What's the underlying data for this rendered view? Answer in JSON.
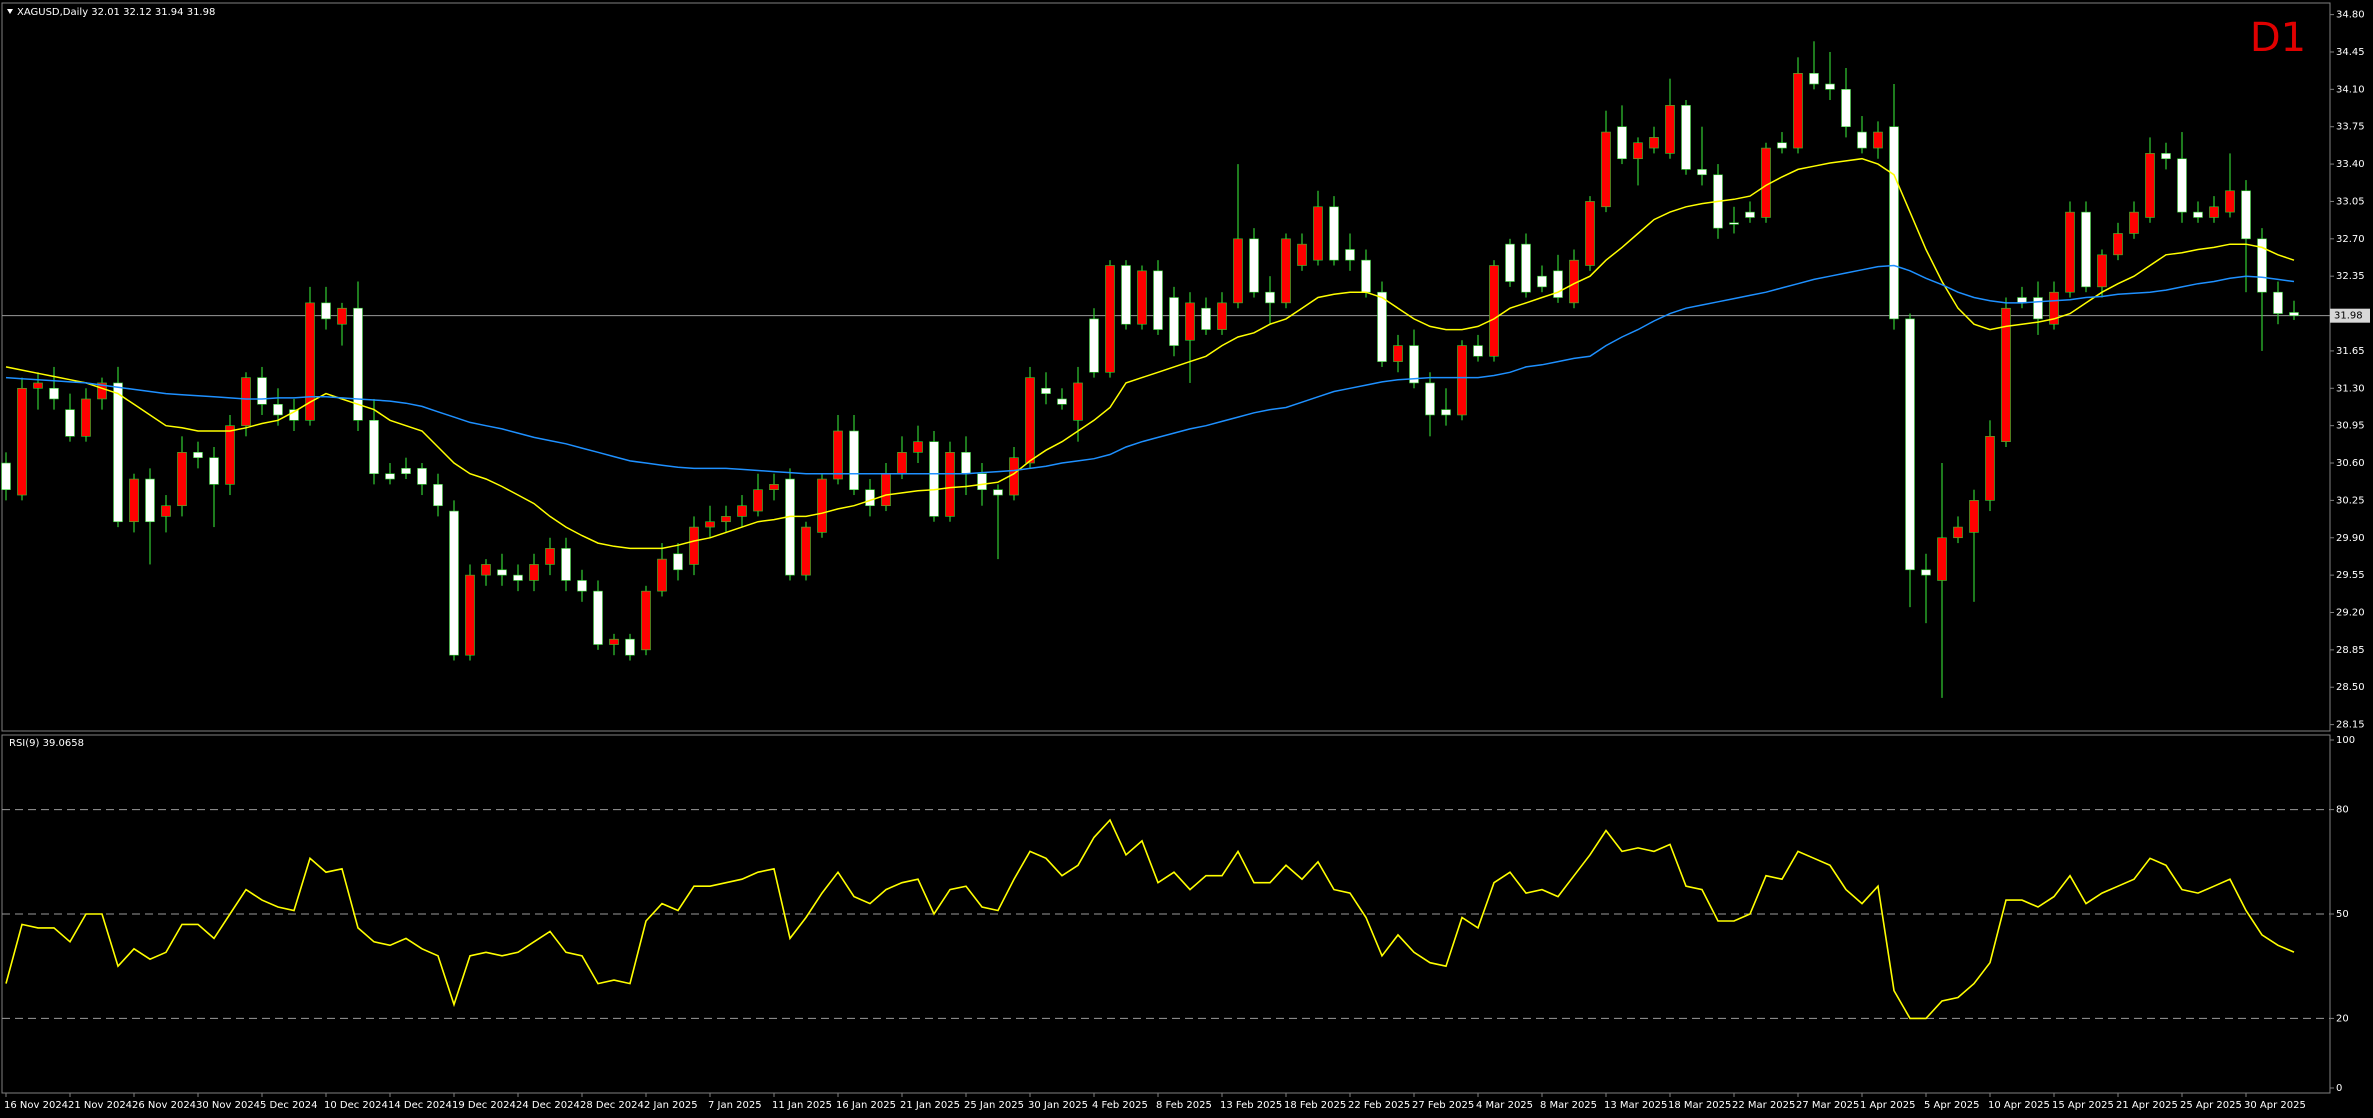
{
  "chart_data": [
    {
      "type": "candlestick",
      "title": "XAGUSD,Daily 32.01 32.12 31.94 31.98",
      "timeframe": "D1",
      "categories": [
        "16 Nov 2024",
        null,
        null,
        null,
        "21 Nov 2024",
        null,
        null,
        null,
        "26 Nov 2024",
        null,
        null,
        null,
        "30 Nov 2024",
        null,
        null,
        null,
        "5 Dec 2024",
        null,
        null,
        null,
        "10 Dec 2024",
        null,
        null,
        null,
        "14 Dec 2024",
        null,
        null,
        null,
        "19 Dec 2024",
        null,
        null,
        null,
        "24 Dec 2024",
        null,
        null,
        null,
        "28 Dec 2024",
        null,
        null,
        null,
        "2 Jan 2025",
        null,
        null,
        null,
        "7 Jan 2025",
        null,
        null,
        null,
        "11 Jan 2025",
        null,
        null,
        null,
        "16 Jan 2025",
        null,
        null,
        null,
        "21 Jan 2025",
        null,
        null,
        null,
        "25 Jan 2025",
        null,
        null,
        null,
        "30 Jan 2025",
        null,
        null,
        null,
        "4 Feb 2025",
        null,
        null,
        null,
        "8 Feb 2025",
        null,
        null,
        null,
        "13 Feb 2025",
        null,
        null,
        null,
        "18 Feb 2025",
        null,
        null,
        null,
        "22 Feb 2025",
        null,
        null,
        null,
        "27 Feb 2025",
        null,
        null,
        null,
        "4 Mar 2025",
        null,
        null,
        null,
        "8 Mar 2025",
        null,
        null,
        null,
        "13 Mar 2025",
        null,
        null,
        null,
        "18 Mar 2025",
        null,
        null,
        null,
        "22 Mar 2025",
        null,
        null,
        null,
        "27 Mar 2025",
        null,
        null,
        null,
        "1 Apr 2025",
        null,
        null,
        null,
        "5 Apr 2025",
        null,
        null,
        null,
        "10 Apr 2025",
        null,
        null,
        null,
        "15 Apr 2025",
        null,
        null,
        null,
        "21 Apr 2025",
        null,
        null,
        null,
        "25 Apr 2025",
        null,
        null,
        null,
        "30 Apr 2025",
        null,
        null,
        null
      ],
      "open": [
        30.6,
        30.3,
        31.3,
        31.3,
        31.1,
        30.85,
        31.2,
        31.35,
        30.05,
        30.45,
        30.1,
        30.2,
        30.7,
        30.65,
        30.4,
        30.95,
        31.4,
        31.15,
        31.1,
        31.0,
        32.1,
        31.9,
        32.05,
        31.0,
        30.5,
        30.55,
        30.55,
        30.4,
        30.15,
        28.8,
        29.55,
        29.6,
        29.55,
        29.5,
        29.65,
        29.8,
        29.5,
        29.4,
        28.9,
        28.95,
        28.85,
        29.4,
        29.75,
        29.65,
        30.0,
        30.05,
        30.1,
        30.15,
        30.35,
        30.45,
        29.55,
        29.95,
        30.45,
        30.9,
        30.35,
        30.2,
        30.5,
        30.7,
        30.8,
        30.1,
        30.7,
        30.5,
        30.35,
        30.3,
        30.6,
        31.3,
        31.2,
        31.0,
        31.95,
        31.45,
        32.45,
        31.9,
        32.4,
        32.15,
        31.75,
        32.05,
        31.85,
        32.1,
        32.7,
        32.2,
        32.1,
        32.45,
        32.5,
        33.0,
        32.6,
        32.5,
        32.2,
        31.55,
        31.7,
        31.35,
        31.1,
        31.05,
        31.7,
        31.6,
        32.65,
        32.65,
        32.35,
        32.4,
        32.1,
        32.45,
        33.0,
        33.75,
        33.45,
        33.55,
        33.5,
        33.95,
        33.35,
        33.3,
        32.85,
        32.95,
        32.9,
        33.6,
        33.55,
        34.25,
        34.15,
        34.1,
        33.7,
        33.55,
        33.75,
        31.95,
        29.6,
        29.5,
        29.9,
        29.95,
        30.25,
        30.8,
        32.15,
        32.15,
        31.9,
        32.2,
        32.95,
        32.25,
        32.55,
        32.75,
        32.9,
        33.5,
        33.45,
        32.95,
        32.9,
        32.95,
        33.15,
        32.7,
        32.2,
        32.01
      ],
      "high": [
        30.7,
        31.4,
        31.45,
        31.5,
        31.25,
        31.3,
        31.4,
        31.5,
        30.5,
        30.55,
        30.3,
        30.85,
        30.8,
        30.75,
        31.05,
        31.45,
        31.5,
        31.3,
        31.2,
        32.25,
        32.25,
        32.1,
        32.3,
        31.2,
        30.6,
        30.65,
        30.6,
        30.5,
        30.25,
        29.65,
        29.7,
        29.75,
        29.65,
        29.75,
        29.9,
        29.9,
        29.6,
        29.5,
        29.0,
        29.0,
        29.45,
        29.85,
        29.85,
        30.1,
        30.2,
        30.2,
        30.3,
        30.5,
        30.5,
        30.55,
        30.05,
        30.5,
        31.05,
        31.05,
        30.45,
        30.6,
        30.85,
        30.95,
        30.9,
        30.8,
        30.85,
        30.6,
        30.4,
        30.75,
        31.5,
        31.45,
        31.3,
        31.5,
        32.05,
        32.5,
        32.5,
        32.45,
        32.5,
        32.25,
        32.2,
        32.15,
        32.2,
        33.4,
        32.8,
        32.35,
        32.75,
        32.75,
        33.15,
        33.1,
        32.75,
        32.6,
        32.3,
        31.8,
        31.85,
        31.45,
        31.3,
        31.75,
        31.8,
        32.5,
        32.7,
        32.75,
        32.45,
        32.55,
        32.6,
        33.1,
        33.9,
        33.95,
        33.65,
        33.75,
        34.2,
        34.0,
        33.75,
        33.4,
        33.0,
        33.05,
        33.6,
        33.7,
        34.4,
        34.55,
        34.45,
        34.3,
        33.85,
        33.8,
        34.15,
        32.0,
        29.75,
        30.6,
        30.1,
        30.35,
        31.0,
        32.15,
        32.25,
        32.3,
        32.3,
        33.05,
        33.05,
        32.6,
        32.85,
        33.05,
        33.65,
        33.6,
        33.7,
        33.05,
        33.1,
        33.5,
        33.25,
        32.8,
        32.3,
        32.12
      ],
      "low": [
        30.25,
        30.25,
        31.1,
        31.1,
        30.8,
        30.8,
        31.1,
        30.0,
        29.95,
        29.65,
        29.95,
        30.1,
        30.55,
        30.0,
        30.3,
        30.85,
        31.05,
        30.95,
        30.9,
        30.95,
        31.85,
        31.7,
        30.9,
        30.4,
        30.4,
        30.45,
        30.3,
        30.1,
        28.75,
        28.75,
        29.45,
        29.45,
        29.4,
        29.4,
        29.55,
        29.4,
        29.3,
        28.85,
        28.8,
        28.75,
        28.8,
        29.35,
        29.5,
        29.55,
        29.9,
        29.95,
        30.0,
        30.1,
        30.25,
        29.5,
        29.5,
        29.9,
        30.4,
        30.3,
        30.1,
        30.15,
        30.45,
        30.6,
        30.05,
        30.05,
        30.3,
        30.2,
        29.7,
        30.25,
        30.55,
        31.15,
        31.1,
        30.8,
        31.4,
        31.4,
        31.85,
        31.85,
        31.8,
        31.6,
        31.35,
        31.8,
        31.8,
        32.05,
        32.15,
        31.9,
        32.05,
        32.4,
        32.45,
        32.45,
        32.4,
        32.15,
        31.5,
        31.45,
        31.3,
        30.85,
        30.95,
        31.0,
        31.55,
        31.55,
        32.25,
        32.15,
        32.2,
        32.1,
        32.05,
        32.4,
        32.95,
        33.4,
        33.2,
        33.5,
        33.45,
        33.3,
        33.2,
        32.7,
        32.75,
        32.85,
        32.85,
        33.5,
        33.5,
        34.1,
        34.0,
        33.65,
        33.5,
        33.45,
        31.85,
        29.25,
        29.1,
        28.4,
        29.85,
        29.3,
        30.15,
        30.75,
        32.05,
        31.8,
        31.85,
        32.15,
        32.2,
        32.15,
        32.5,
        32.7,
        32.85,
        33.35,
        32.85,
        32.85,
        32.85,
        32.9,
        32.2,
        31.65,
        31.9,
        31.94
      ],
      "close": [
        30.35,
        31.3,
        31.35,
        31.2,
        30.85,
        31.2,
        31.35,
        30.05,
        30.45,
        30.05,
        30.2,
        30.7,
        30.65,
        30.4,
        30.95,
        31.4,
        31.15,
        31.05,
        31.0,
        32.1,
        31.95,
        32.05,
        31.0,
        30.5,
        30.45,
        30.5,
        30.4,
        30.2,
        28.8,
        29.55,
        29.65,
        29.55,
        29.5,
        29.65,
        29.8,
        29.5,
        29.4,
        28.9,
        28.95,
        28.8,
        29.4,
        29.7,
        29.6,
        30.0,
        30.05,
        30.1,
        30.2,
        30.35,
        30.4,
        29.55,
        30.0,
        30.45,
        30.9,
        30.35,
        30.2,
        30.5,
        30.7,
        30.8,
        30.1,
        30.7,
        30.5,
        30.35,
        30.3,
        30.65,
        31.4,
        31.25,
        31.15,
        31.35,
        31.45,
        32.45,
        31.9,
        32.4,
        31.85,
        31.7,
        32.1,
        31.85,
        32.1,
        32.7,
        32.2,
        32.1,
        32.7,
        32.65,
        33.0,
        32.5,
        32.5,
        32.2,
        31.55,
        31.7,
        31.35,
        31.05,
        31.05,
        31.7,
        31.6,
        32.45,
        32.3,
        32.2,
        32.25,
        32.15,
        32.5,
        33.05,
        33.7,
        33.45,
        33.6,
        33.65,
        33.95,
        33.35,
        33.3,
        32.8,
        32.85,
        32.9,
        33.55,
        33.55,
        34.25,
        34.15,
        34.1,
        33.75,
        33.55,
        33.7,
        31.95,
        29.6,
        29.55,
        29.9,
        30.0,
        30.25,
        30.85,
        32.05,
        32.1,
        31.95,
        32.2,
        32.95,
        32.25,
        32.55,
        32.75,
        32.95,
        33.5,
        33.45,
        32.95,
        32.9,
        33.0,
        33.15,
        32.7,
        32.2,
        32.0,
        31.98
      ],
      "up_color": "#ff0000",
      "down_color": "#ffffff",
      "wick_color": "#32cd32",
      "overlays": [
        {
          "color": "#ffff00",
          "values": [
            31.5,
            31.47,
            31.44,
            31.41,
            31.38,
            31.35,
            31.3,
            31.25,
            31.15,
            31.05,
            30.95,
            30.93,
            30.9,
            30.9,
            30.9,
            30.93,
            30.97,
            31.0,
            31.08,
            31.17,
            31.25,
            31.2,
            31.15,
            31.1,
            31.0,
            30.95,
            30.9,
            30.75,
            30.6,
            30.5,
            30.45,
            30.38,
            30.3,
            30.22,
            30.1,
            30.0,
            29.92,
            29.85,
            29.82,
            29.8,
            29.8,
            29.8,
            29.83,
            29.87,
            29.9,
            29.95,
            30.0,
            30.05,
            30.07,
            30.1,
            30.1,
            30.13,
            30.17,
            30.2,
            30.25,
            30.3,
            30.32,
            30.34,
            30.35,
            30.37,
            30.38,
            30.4,
            30.42,
            30.5,
            30.62,
            30.72,
            30.8,
            30.9,
            31.0,
            31.12,
            31.35,
            31.4,
            31.45,
            31.5,
            31.55,
            31.6,
            31.7,
            31.78,
            31.82,
            31.9,
            31.95,
            32.05,
            32.15,
            32.18,
            32.2,
            32.2,
            32.15,
            32.05,
            31.95,
            31.88,
            31.85,
            31.85,
            31.88,
            31.95,
            32.05,
            32.1,
            32.15,
            32.2,
            32.28,
            32.35,
            32.5,
            32.62,
            32.75,
            32.88,
            32.95,
            33.0,
            33.03,
            33.05,
            33.07,
            33.1,
            33.2,
            33.28,
            33.35,
            33.38,
            33.41,
            33.43,
            33.45,
            33.4,
            33.3,
            32.95,
            32.6,
            32.3,
            32.05,
            31.9,
            31.85,
            31.88,
            31.9,
            31.92,
            31.95,
            32.0,
            32.1,
            32.2,
            32.28,
            32.35,
            32.45,
            32.55,
            32.57,
            32.6,
            32.62,
            32.65,
            32.65,
            32.62,
            32.55,
            32.5
          ]
        },
        {
          "color": "#1e90ff",
          "values": [
            31.4,
            31.39,
            31.38,
            31.37,
            31.36,
            31.35,
            31.33,
            31.31,
            31.29,
            31.27,
            31.25,
            31.24,
            31.23,
            31.22,
            31.21,
            31.2,
            31.2,
            31.21,
            31.21,
            31.22,
            31.22,
            31.21,
            31.2,
            31.19,
            31.18,
            31.16,
            31.13,
            31.08,
            31.03,
            30.98,
            30.95,
            30.92,
            30.88,
            30.84,
            30.81,
            30.78,
            30.74,
            30.7,
            30.66,
            30.62,
            30.6,
            30.58,
            30.56,
            30.55,
            30.55,
            30.55,
            30.54,
            30.53,
            30.52,
            30.51,
            30.5,
            30.5,
            30.5,
            30.5,
            30.5,
            30.5,
            30.5,
            30.5,
            30.5,
            30.5,
            30.5,
            30.51,
            30.52,
            30.53,
            30.55,
            30.57,
            30.6,
            30.62,
            30.64,
            30.68,
            30.75,
            30.8,
            30.84,
            30.88,
            30.92,
            30.95,
            30.99,
            31.03,
            31.07,
            31.1,
            31.12,
            31.17,
            31.22,
            31.27,
            31.3,
            31.33,
            31.36,
            31.38,
            31.39,
            31.4,
            31.4,
            31.4,
            31.4,
            31.42,
            31.45,
            31.5,
            31.52,
            31.55,
            31.58,
            31.6,
            31.7,
            31.78,
            31.85,
            31.93,
            32.0,
            32.05,
            32.08,
            32.11,
            32.14,
            32.17,
            32.2,
            32.24,
            32.28,
            32.32,
            32.35,
            32.38,
            32.41,
            32.44,
            32.45,
            32.4,
            32.33,
            32.27,
            32.2,
            32.15,
            32.12,
            32.1,
            32.1,
            32.11,
            32.12,
            32.13,
            32.15,
            32.16,
            32.18,
            32.19,
            32.2,
            32.22,
            32.25,
            32.28,
            32.3,
            32.33,
            32.35,
            32.34,
            32.32,
            32.3
          ]
        }
      ],
      "bid": 31.98,
      "ylim": [
        28.09,
        34.89
      ],
      "yticks": [
        28.15,
        {
          "value": 28.5,
          "label": "28.50"
        },
        28.85,
        {
          "value": 29.2,
          "label": "29.20"
        },
        29.55,
        {
          "value": 29.9,
          "label": "29.90"
        },
        30.25,
        {
          "value": 30.6,
          "label": "30.60"
        },
        30.95,
        {
          "value": 31.3,
          "label": "31.30"
        },
        31.65,
        32.35,
        {
          "value": 32.7,
          "label": "32.70"
        },
        33.05,
        {
          "value": 33.4,
          "label": "33.40"
        },
        33.75,
        {
          "value": 34.1,
          "label": "34.10"
        },
        34.45,
        {
          "value": 34.8,
          "label": "34.80"
        }
      ]
    },
    {
      "type": "line",
      "title": "RSI(9) 39.0658",
      "color": "#ffff00",
      "values": [
        30,
        47,
        46,
        46,
        42,
        50,
        50,
        35,
        40,
        37,
        39,
        47,
        47,
        43,
        50,
        57,
        54,
        52,
        51,
        66,
        62,
        63,
        46,
        42,
        41,
        43,
        40,
        38,
        24,
        38,
        39,
        38,
        39,
        42,
        45,
        39,
        38,
        30,
        31,
        30,
        48,
        53,
        51,
        58,
        58,
        59,
        60,
        62,
        63,
        43,
        49,
        56,
        62,
        55,
        53,
        57,
        59,
        60,
        50,
        57,
        58,
        52,
        51,
        60,
        68,
        66,
        61,
        64,
        72,
        77,
        67,
        71,
        59,
        62,
        57,
        61,
        61,
        68,
        59,
        59,
        64,
        60,
        65,
        57,
        56,
        49,
        38,
        44,
        39,
        36,
        35,
        49,
        46,
        59,
        62,
        56,
        57,
        55,
        61,
        67,
        74,
        68,
        69,
        68,
        70,
        58,
        57,
        48,
        48,
        50,
        61,
        60,
        68,
        66,
        64,
        57,
        53,
        58,
        28,
        20,
        20,
        25,
        26,
        30,
        36,
        54,
        54,
        52,
        55,
        61,
        53,
        56,
        58,
        60,
        66,
        64,
        57,
        56,
        58,
        60,
        51,
        44,
        41,
        39.0658
      ],
      "ylim": [
        0,
        100
      ],
      "yticks": [
        0,
        20,
        50,
        80,
        100
      ],
      "levels": [
        20,
        50,
        80
      ]
    }
  ]
}
